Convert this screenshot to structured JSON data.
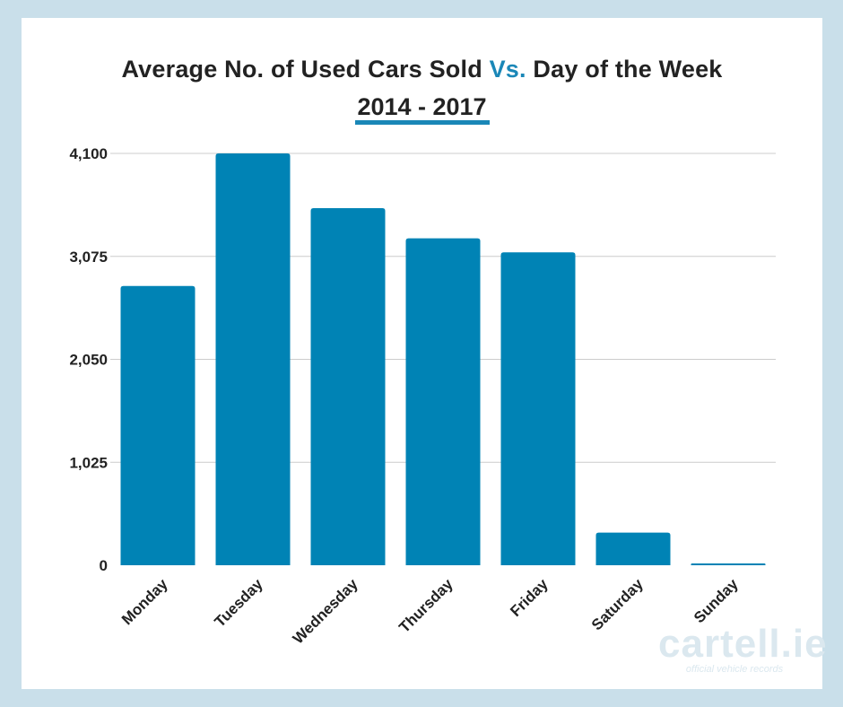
{
  "title": {
    "prefix": "Average No. of Used Cars Sold ",
    "accent": "Vs.",
    "suffix": " Day of the Week",
    "subtitle": "2014 - 2017"
  },
  "colors": {
    "bar": "#0083b5",
    "accent": "#1a87b7",
    "grid": "#cccccc",
    "frame": "#c9dfea"
  },
  "watermark": {
    "brand": "cartell.ie",
    "tagline": "official vehicle records"
  },
  "chart_data": {
    "type": "bar",
    "categories": [
      "Monday",
      "Tuesday",
      "Wednesday",
      "Thursday",
      "Friday",
      "Saturday",
      "Sunday"
    ],
    "values": [
      2780,
      4100,
      3555,
      3255,
      3115,
      325,
      18
    ],
    "yticks": [
      "0",
      "1,025",
      "2,050",
      "3,075",
      "4,100"
    ],
    "ylim": [
      0,
      4100
    ],
    "grid": true
  }
}
